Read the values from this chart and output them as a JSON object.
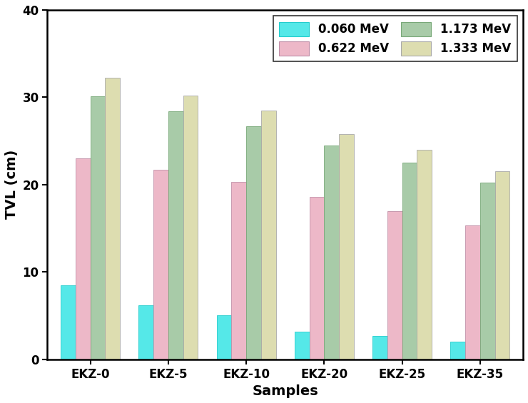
{
  "categories": [
    "EKZ-0",
    "EKZ-5",
    "EKZ-10",
    "EKZ-20",
    "EKZ-25",
    "EKZ-35"
  ],
  "series_order": [
    "0.060 MeV",
    "0.622 MeV",
    "1.173 MeV",
    "1.333 MeV"
  ],
  "series": {
    "0.060 MeV": [
      8.5,
      6.2,
      5.0,
      3.2,
      2.7,
      2.0
    ],
    "0.622 MeV": [
      23.0,
      21.7,
      20.3,
      18.6,
      17.0,
      15.3
    ],
    "1.173 MeV": [
      30.1,
      28.4,
      26.7,
      24.5,
      22.5,
      20.2
    ],
    "1.333 MeV": [
      32.2,
      30.2,
      28.5,
      25.8,
      24.0,
      21.5
    ]
  },
  "colors": {
    "0.060 MeV": "#55E8E8",
    "0.622 MeV": "#EDB8C8",
    "1.173 MeV": "#A8CBA8",
    "1.333 MeV": "#DDDDB0"
  },
  "edge_colors": {
    "0.060 MeV": "#22CCCC",
    "0.622 MeV": "#C090A8",
    "1.173 MeV": "#78A878",
    "1.333 MeV": "#AAAAAA"
  },
  "legend_order": [
    "0.060 MeV",
    "0.622 MeV",
    "1.173 MeV",
    "1.333 MeV"
  ],
  "ylabel": "TVL (cm)",
  "xlabel": "Samples",
  "ylim": [
    0,
    40
  ],
  "yticks": [
    0,
    10,
    20,
    30,
    40
  ],
  "bar_width": 0.19,
  "legend_fontsize": 12,
  "axis_fontsize": 14,
  "tick_fontsize": 12,
  "background_color": "#ffffff"
}
